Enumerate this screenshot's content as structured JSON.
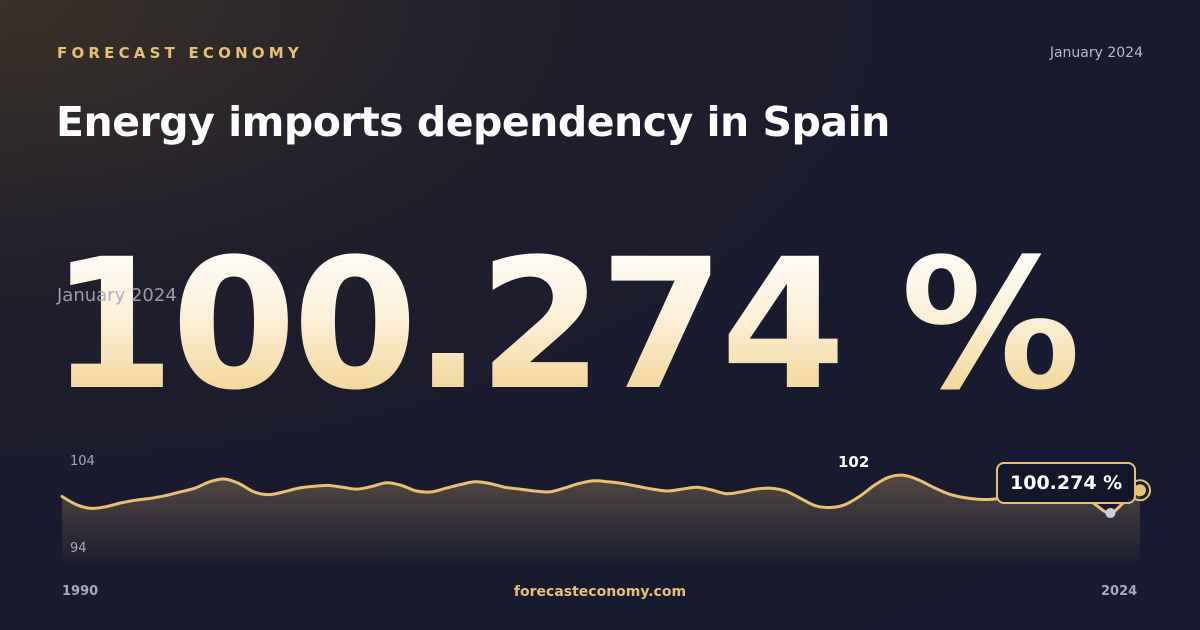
{
  "header": {
    "brand": "FORECAST ECONOMY",
    "date": "January 2024",
    "title": "Energy imports dependency in Spain"
  },
  "headline": {
    "value": "100.274 %",
    "date": "January 2024"
  },
  "footer": {
    "site": "forecasteconomy.com"
  },
  "colors": {
    "accent": "#e8c071",
    "background": "#181a2e"
  },
  "chart_data": {
    "type": "area",
    "title": "",
    "xlabel": "",
    "ylabel": "",
    "x_start_label": "1990",
    "x_end_label": "2024",
    "y_max_label": "104",
    "y_min_label": "94",
    "ylim": [
      94,
      104
    ],
    "peak_label": "102",
    "last_value_label": "100.274 %",
    "grid": false,
    "series": [
      {
        "values": [
          99.6,
          98.7,
          98.3,
          98.5,
          98.9,
          99.2,
          99.4,
          99.7,
          100.1,
          100.5,
          101.2,
          101.5,
          101.0,
          100.1,
          99.8,
          100.1,
          100.5,
          100.7,
          100.8,
          100.6,
          100.4,
          100.7,
          101.1,
          100.8,
          100.2,
          100.1,
          100.5,
          100.9,
          101.2,
          101.0,
          100.6,
          100.4,
          100.2,
          100.1,
          100.5,
          101.0,
          101.3,
          101.2,
          101.0,
          100.7,
          100.4,
          100.2,
          100.4,
          100.6,
          100.3,
          99.9,
          100.1,
          100.4,
          100.5,
          100.2,
          99.4,
          98.6,
          98.4,
          98.7,
          99.6,
          100.8,
          101.7,
          101.9,
          101.4,
          100.6,
          99.9,
          99.5,
          99.3,
          99.3,
          99.6,
          100.3,
          101.2,
          101.6,
          101.2,
          100.1,
          98.7,
          97.8,
          99.1,
          100.274
        ]
      }
    ]
  }
}
